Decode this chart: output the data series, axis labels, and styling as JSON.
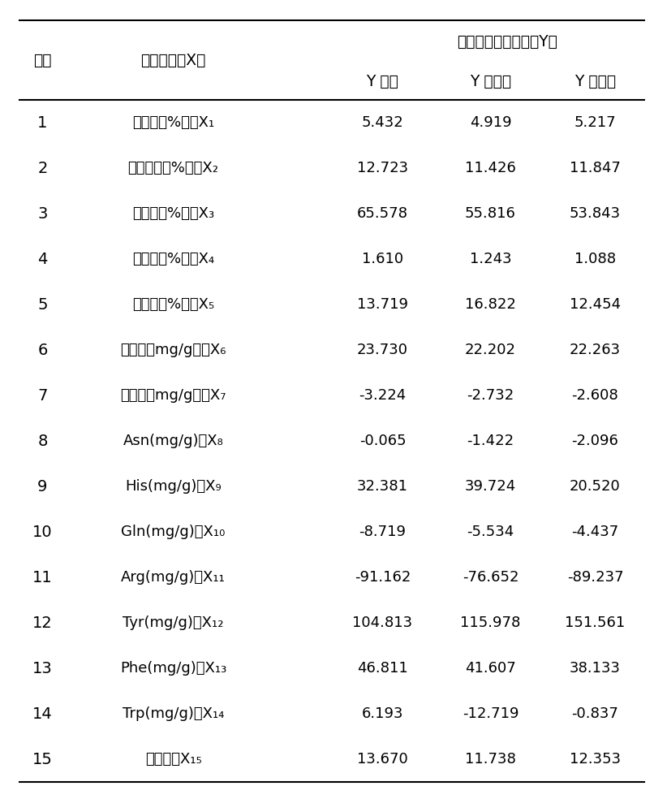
{
  "title_row1": "香型判定分类函数（Y）",
  "col_header_no": "序号",
  "col_header_substance": "检测物质（X）",
  "col_header_y1": "Y 清香",
  "col_header_y2": "Y 浓香型",
  "col_header_y3": "Y 中间香",
  "rows": [
    {
      "no": "1",
      "sub_cn": "还原糖（%）、X",
      "sub_idx": "1",
      "y1": "5.432",
      "y2": "4.919",
      "y3": "5.217"
    },
    {
      "no": "2",
      "sub_cn": "总植物碱（%）、X",
      "sub_idx": "2",
      "y1": "12.723",
      "y2": "11.426",
      "y3": "11.847"
    },
    {
      "no": "3",
      "sub_cn": "挥发碱（%）、X",
      "sub_idx": "3",
      "y1": "65.578",
      "y2": "55.816",
      "y3": "53.843"
    },
    {
      "no": "4",
      "sub_cn": "葡萄糖（%）、X",
      "sub_idx": "4",
      "y1": "1.610",
      "y2": "1.243",
      "y3": "1.088"
    },
    {
      "no": "5",
      "sub_cn": "磷酸根（%）、X",
      "sub_idx": "5",
      "y1": "13.719",
      "y2": "16.822",
      "y3": "12.454"
    },
    {
      "no": "6",
      "sub_cn": "棕椰酸（mg/g）、X",
      "sub_idx": "6",
      "y1": "23.730",
      "y2": "22.202",
      "y3": "22.263"
    },
    {
      "no": "7",
      "sub_cn": "亚麻酸（mg/g）、X",
      "sub_idx": "7",
      "y1": "-3.224",
      "y2": "-2.732",
      "y3": "-2.608"
    },
    {
      "no": "8",
      "sub_cn": "Asn(mg/g)、X",
      "sub_idx": "8",
      "y1": "-0.065",
      "y2": "-1.422",
      "y3": "-2.096"
    },
    {
      "no": "9",
      "sub_cn": "His(mg/g)、X",
      "sub_idx": "9",
      "y1": "32.381",
      "y2": "39.724",
      "y3": "20.520"
    },
    {
      "no": "10",
      "sub_cn": "Gln(mg/g)、X",
      "sub_idx": "10",
      "y1": "-8.719",
      "y2": "-5.534",
      "y3": "-4.437"
    },
    {
      "no": "11",
      "sub_cn": "Arg(mg/g)、X",
      "sub_idx": "11",
      "y1": "-91.162",
      "y2": "-76.652",
      "y3": "-89.237"
    },
    {
      "no": "12",
      "sub_cn": "Tyr(mg/g)、X",
      "sub_idx": "12",
      "y1": "104.813",
      "y2": "115.978",
      "y3": "151.561"
    },
    {
      "no": "13",
      "sub_cn": "Phe(mg/g)、X",
      "sub_idx": "13",
      "y1": "46.811",
      "y2": "41.607",
      "y3": "38.133"
    },
    {
      "no": "14",
      "sub_cn": "Trp(mg/g)、X",
      "sub_idx": "14",
      "y1": "6.193",
      "y2": "-12.719",
      "y3": "-0.837"
    },
    {
      "no": "15",
      "sub_cn": "面包锐、X",
      "sub_idx": "15",
      "y1": "13.670",
      "y2": "11.738",
      "y3": "12.353"
    }
  ],
  "bg_color": "#ffffff",
  "text_color": "#000000",
  "font_size": 13,
  "header_font_size": 13.5
}
